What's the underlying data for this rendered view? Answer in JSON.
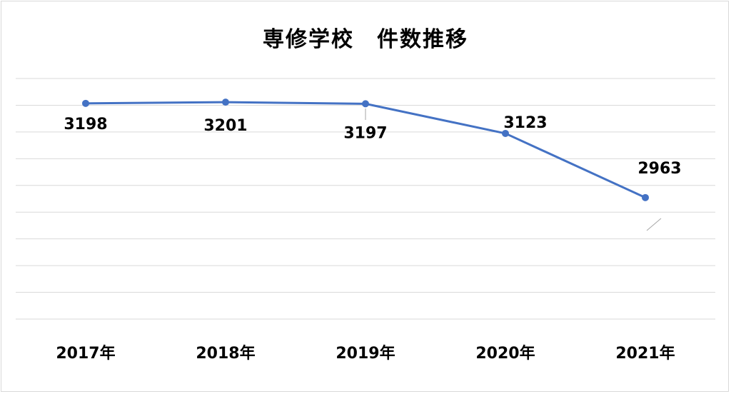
{
  "chart_data": {
    "type": "line",
    "title": "専修学校　件数推移",
    "categories": [
      "2017年",
      "2018年",
      "2019年",
      "2020年",
      "2021年"
    ],
    "series": [
      {
        "values": [
          3198,
          3201,
          3197,
          3123,
          2963
        ]
      }
    ],
    "ylim": [
      2660,
      3260
    ],
    "grid": true,
    "line_color": "#4472c4",
    "grid_color": "#d9d9d9",
    "data_labels": true
  }
}
